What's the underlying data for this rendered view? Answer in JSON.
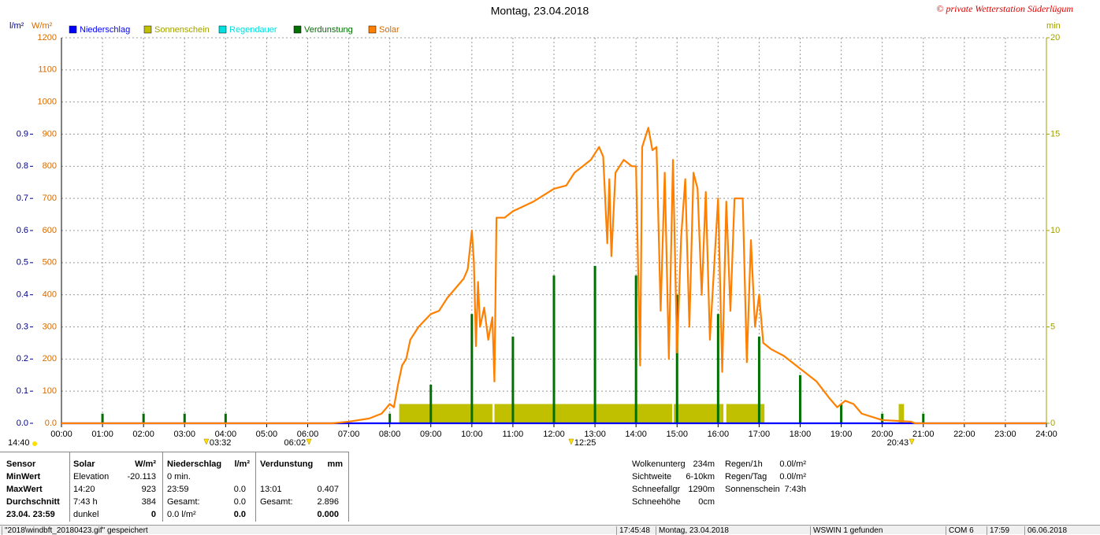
{
  "chart_data": {
    "type": "line",
    "title": "Montag, 23.04.2018",
    "copyright": "© private Wetterstation Süderlügum",
    "ylabel": "W/m²",
    "y2label": "min",
    "y3label": "l/m²",
    "xlim": [
      0,
      24
    ],
    "xticks": [
      {
        "value": 0,
        "label": "00:00"
      },
      {
        "value": 1,
        "label": "01:00"
      },
      {
        "value": 2,
        "label": "02:00"
      },
      {
        "value": 3,
        "label": "03:00"
      },
      {
        "value": 4,
        "label": "04:00"
      },
      {
        "value": 5,
        "label": "05:00"
      },
      {
        "value": 6,
        "label": "06:00"
      },
      {
        "value": 7,
        "label": "07:00"
      },
      {
        "value": 8,
        "label": "08:00"
      },
      {
        "value": 9,
        "label": "09:00"
      },
      {
        "value": 10,
        "label": "10:00"
      },
      {
        "value": 11,
        "label": "11:00"
      },
      {
        "value": 12,
        "label": "12:00"
      },
      {
        "value": 13,
        "label": "13:00"
      },
      {
        "value": 14,
        "label": "14:00"
      },
      {
        "value": 15,
        "label": "15:00"
      },
      {
        "value": 16,
        "label": "16:00"
      },
      {
        "value": 17,
        "label": "17:00"
      },
      {
        "value": 18,
        "label": "18:00"
      },
      {
        "value": 19,
        "label": "19:00"
      },
      {
        "value": 20,
        "label": "20:00"
      },
      {
        "value": 21,
        "label": "21:00"
      },
      {
        "value": 22,
        "label": "22:00"
      },
      {
        "value": 23,
        "label": "23:00"
      },
      {
        "value": 24,
        "label": "24:00"
      }
    ],
    "ylim": [
      0,
      1200
    ],
    "yticks": [
      {
        "value": 0,
        "label": "0.0"
      },
      100,
      200,
      300,
      400,
      500,
      600,
      700,
      800,
      900,
      1000,
      1100,
      1200
    ],
    "y2lim": [
      0,
      20
    ],
    "y2ticks": [
      0,
      5,
      10,
      15,
      20
    ],
    "y3lim": [
      0,
      1.2
    ],
    "y3ticks": [
      {
        "value": 0,
        "label": "0.0"
      },
      0.1,
      0.2,
      0.3,
      0.4,
      0.5,
      0.6,
      0.7,
      0.8,
      0.9
    ],
    "grid": true,
    "time_label": "14:40",
    "markers": [
      {
        "value": 3.53,
        "label": "03:32"
      },
      {
        "value": 6.03,
        "label": "06:02"
      },
      {
        "value": 12.42,
        "label": "12:25"
      },
      {
        "value": 20.72,
        "label": "20:43"
      }
    ],
    "series": [
      {
        "name": "Niederschlag",
        "color": "#0000ff",
        "axis": "y3",
        "kind": "line",
        "x": [
          0,
          24
        ],
        "values": [
          0,
          0
        ]
      },
      {
        "name": "Sonnenschein",
        "color": "#c0c000",
        "axis": "y2",
        "kind": "span",
        "x": [
          8.23,
          10.55,
          14.92,
          16.2,
          20.4
        ],
        "x2": [
          10.5,
          14.88,
          16.13,
          17.13,
          20.53
        ],
        "values": [
          1,
          1,
          1,
          1,
          1
        ]
      },
      {
        "name": "Regendauer",
        "color": "#00e0e0",
        "axis": "y2",
        "kind": "span",
        "x": [],
        "x2": [],
        "values": []
      },
      {
        "name": "Verdunstung",
        "color": "#007000",
        "axis": "y3",
        "kind": "bar",
        "x": [
          1,
          2,
          3,
          4,
          8,
          9,
          10,
          11,
          12,
          13,
          14,
          15,
          16,
          17,
          18,
          19,
          20,
          21
        ],
        "values": [
          0.03,
          0.03,
          0.03,
          0.03,
          0.03,
          0.12,
          0.34,
          0.27,
          0.46,
          0.49,
          0.46,
          0.4,
          0.34,
          0.27,
          0.15,
          0.06,
          0.03,
          0.03
        ]
      },
      {
        "name": "Solar",
        "color": "#ff8000",
        "axis": "y",
        "kind": "line",
        "x": [
          0,
          6.6,
          7,
          7.5,
          7.8,
          8,
          8.1,
          8.2,
          8.3,
          8.4,
          8.5,
          8.7,
          9,
          9.2,
          9.4,
          9.6,
          9.8,
          9.9,
          10,
          10.05,
          10.1,
          10.15,
          10.2,
          10.3,
          10.4,
          10.5,
          10.55,
          10.6,
          10.8,
          11,
          11.5,
          12,
          12.3,
          12.5,
          12.7,
          12.9,
          13.1,
          13.2,
          13.3,
          13.35,
          13.4,
          13.5,
          13.7,
          13.9,
          14,
          14.1,
          14.15,
          14.3,
          14.4,
          14.5,
          14.6,
          14.7,
          14.8,
          14.9,
          15,
          15.1,
          15.2,
          15.3,
          15.4,
          15.5,
          15.6,
          15.7,
          15.8,
          16,
          16.1,
          16.2,
          16.3,
          16.4,
          16.6,
          16.7,
          16.8,
          16.9,
          17,
          17.1,
          17.3,
          17.6,
          18,
          18.4,
          18.7,
          18.9,
          19.1,
          19.3,
          19.5,
          20,
          20.7,
          20.8,
          24
        ],
        "values": [
          0,
          0,
          5,
          15,
          30,
          60,
          50,
          120,
          180,
          200,
          260,
          300,
          340,
          350,
          390,
          420,
          450,
          480,
          600,
          500,
          240,
          440,
          300,
          360,
          260,
          330,
          130,
          640,
          640,
          660,
          690,
          730,
          740,
          780,
          800,
          820,
          860,
          830,
          560,
          760,
          520,
          780,
          820,
          800,
          800,
          180,
          860,
          920,
          850,
          860,
          350,
          780,
          200,
          820,
          220,
          580,
          760,
          300,
          780,
          730,
          400,
          720,
          260,
          700,
          160,
          690,
          350,
          700,
          700,
          190,
          570,
          300,
          400,
          250,
          230,
          210,
          170,
          130,
          80,
          50,
          70,
          60,
          30,
          10,
          5,
          0,
          0
        ]
      }
    ]
  },
  "stats": {
    "labels": [
      "Sensor",
      "MinWert",
      "MaxWert",
      "Durchschnitt",
      "23.04. 23:59"
    ],
    "groups": [
      {
        "header": {
          "left": "Solar",
          "right": "W/m²"
        },
        "rows": [
          {
            "left": "Elevation",
            "right": "-20.113"
          },
          {
            "left": "14:20",
            "right": "923"
          },
          {
            "left": "7:43 h",
            "right": "384"
          },
          {
            "left": "dunkel",
            "right": "0"
          }
        ]
      },
      {
        "header": {
          "left": "Niederschlag",
          "right": "l/m²"
        },
        "rows": [
          {
            "left": "0 min."
          },
          {
            "left": "23:59",
            "right": "0.0"
          },
          {
            "left": "Gesamt:",
            "right": "0.0"
          },
          {
            "left": "0.0 l/m²",
            "right": "0.0"
          }
        ]
      },
      {
        "header": {
          "left": "Verdunstung",
          "right": "mm"
        },
        "rows": [
          {},
          {
            "left": "13:01",
            "right": "0.407"
          },
          {
            "left": "Gesamt:",
            "right": "2.896"
          },
          {
            "right": "0.000"
          }
        ]
      }
    ],
    "info1": [
      {
        "left": "Wolkenunterg",
        "right": "234m"
      },
      {
        "left": "Sichtweite",
        "right": "6-10km"
      },
      {
        "left": "Schneefallgr",
        "right": "1290m"
      },
      {
        "left": "Schneehöhe",
        "right": "0cm"
      }
    ],
    "info2": [
      {
        "left": "Regen/1h",
        "right": "0.0l/m²"
      },
      {
        "left": "Regen/Tag",
        "right": "0.0l/m²"
      },
      {
        "left": "Sonnenschein",
        "right": "7:43h"
      }
    ]
  },
  "status": [
    "\"2018\\windbft_20180423.gif\" gespeichert",
    "17:45:48",
    "Montag, 23.04.2018",
    "WSWIN 1 gefunden",
    "COM 6",
    "17:59",
    "06.06.2018"
  ]
}
